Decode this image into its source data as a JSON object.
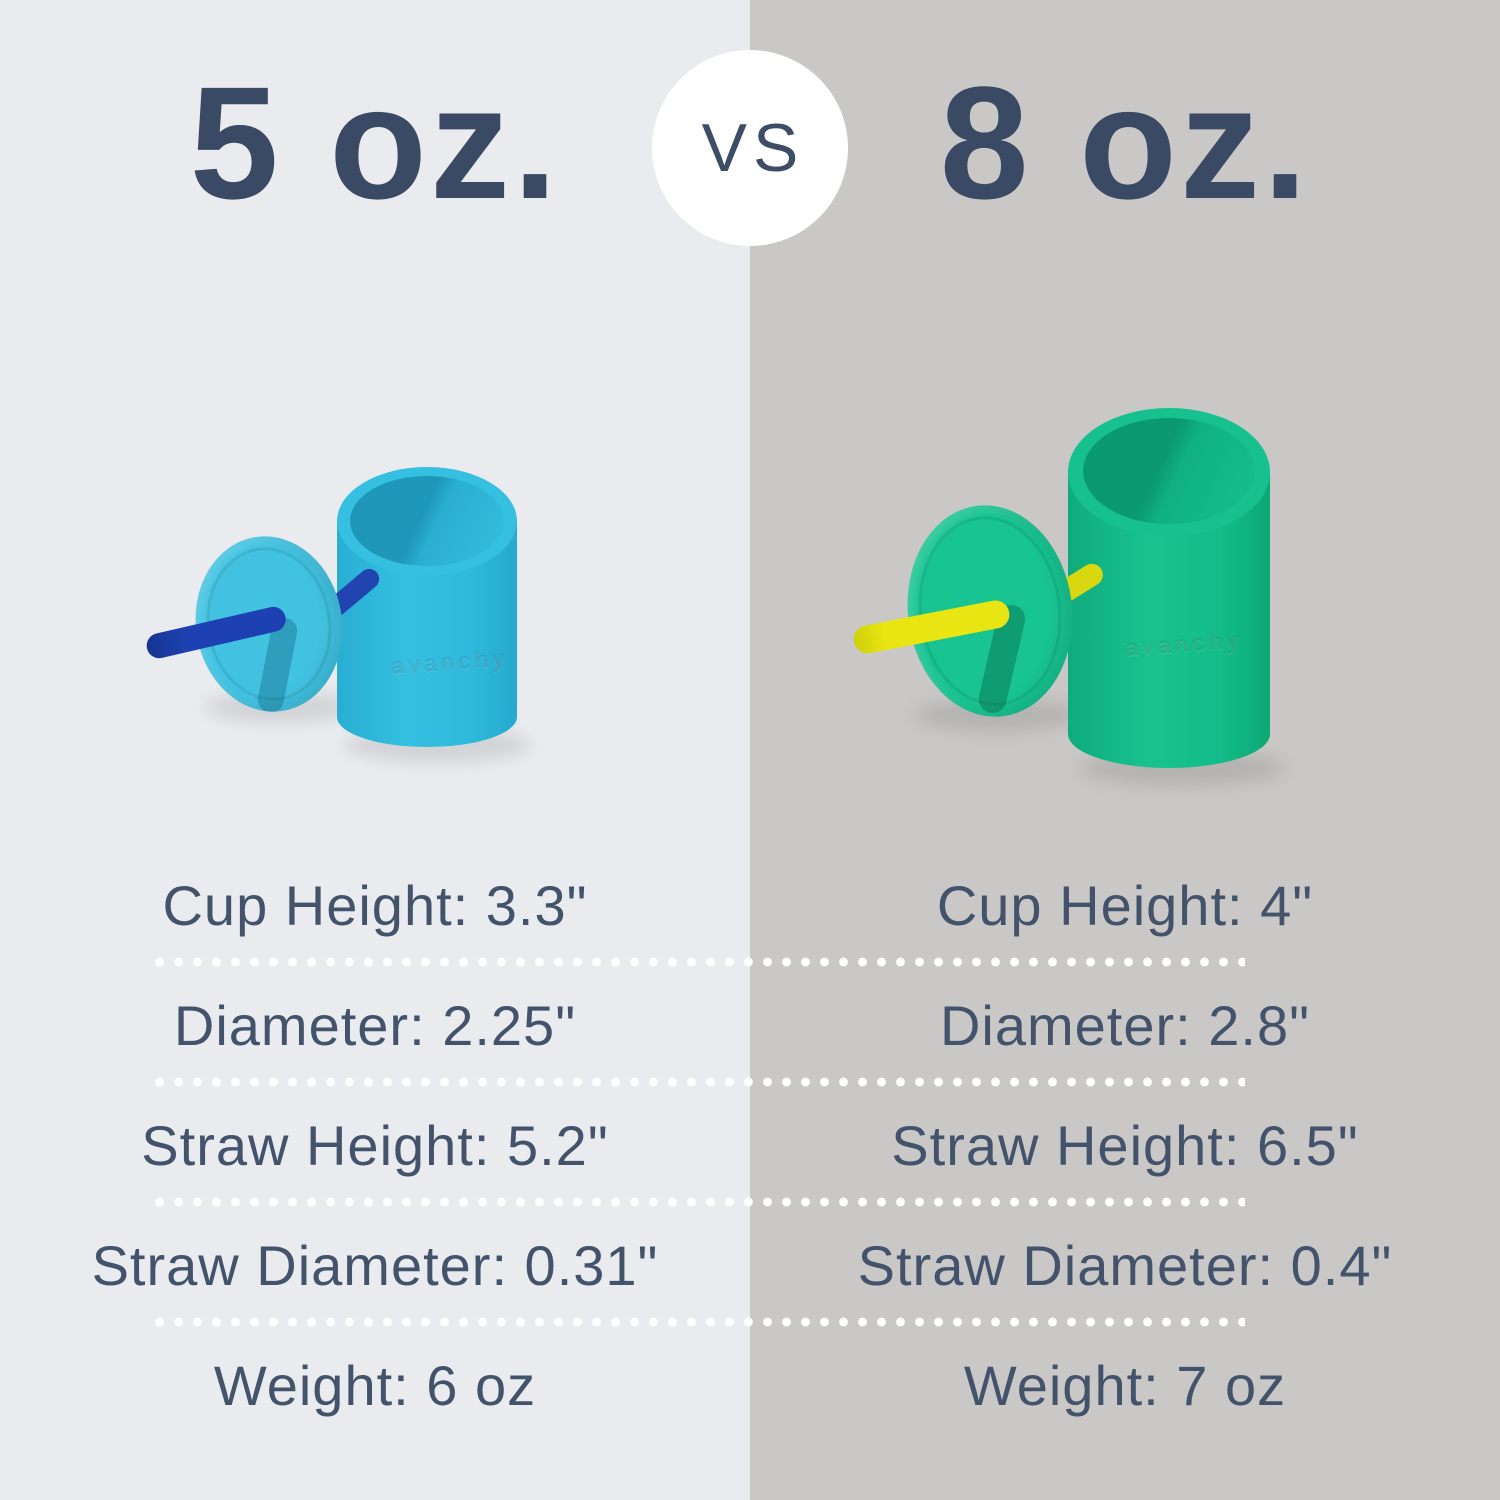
{
  "page": {
    "left_panel_bg": "#e9ebee",
    "right_panel_bg": "#c9c8c6",
    "title_color": "#3b4a64",
    "spec_text_color": "#44536c",
    "separator_dot_color": "#ffffff"
  },
  "header": {
    "left_title": "5 oz.",
    "vs_label": "VS",
    "right_title": "8 oz."
  },
  "products": {
    "left": {
      "description": "5 oz silicone cup with straw lid and blue straw",
      "cup_color": "#2eb9dc",
      "lid_color": "#41c2e1",
      "straw_color": "#1d41b2",
      "logo_text": "avanchy"
    },
    "right": {
      "description": "8 oz silicone cup with straw lid and yellow straw",
      "cup_color": "#13bc88",
      "lid_color": "#18c491",
      "straw_color": "#e9e513",
      "logo_text": "avanchy"
    }
  },
  "specs": {
    "left": [
      "Cup Height: 3.3\"",
      "Diameter: 2.25\"",
      "Straw Height: 5.2\"",
      "Straw Diameter: 0.31\"",
      "Weight: 6 oz"
    ],
    "right": [
      "Cup Height: 4\"",
      "Diameter: 2.8\"",
      "Straw Height: 6.5\"",
      "Straw Diameter: 0.4\"",
      "Weight: 7 oz"
    ]
  }
}
